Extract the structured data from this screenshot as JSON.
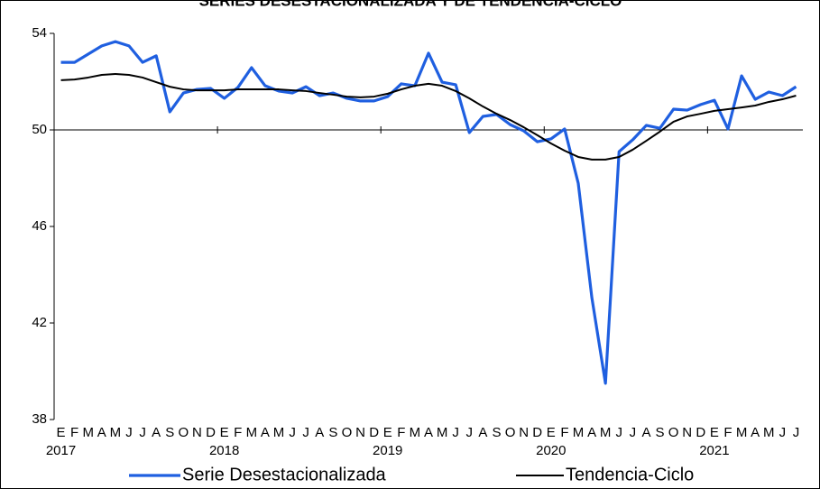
{
  "chart_data": {
    "type": "line",
    "title": "SERIES DESESTACIONALIZADA Y DE TENDENCIA-CICLO",
    "categories": [
      "E",
      "F",
      "M",
      "A",
      "M",
      "J",
      "J",
      "A",
      "S",
      "O",
      "N",
      "D",
      "E",
      "F",
      "M",
      "A",
      "M",
      "J",
      "J",
      "A",
      "S",
      "O",
      "N",
      "D",
      "E",
      "F",
      "M",
      "A",
      "M",
      "J",
      "J",
      "A",
      "S",
      "O",
      "N",
      "D",
      "E",
      "F",
      "M",
      "A",
      "M",
      "J",
      "J",
      "A",
      "S",
      "O",
      "N",
      "D",
      "E",
      "F",
      "M",
      "A",
      "M",
      "J",
      "J"
    ],
    "years": [
      "2017",
      "2018",
      "2019",
      "2020",
      "2021"
    ],
    "ylim": [
      38,
      54
    ],
    "yticks": [
      38,
      42,
      46,
      50,
      54
    ],
    "series": [
      {
        "name": "Serie Desestacionalizada",
        "color": "#1f5fe0",
        "values": [
          52.8,
          52.8,
          53.14,
          53.48,
          53.66,
          53.48,
          52.8,
          53.07,
          50.75,
          51.53,
          51.68,
          51.72,
          51.31,
          51.76,
          52.58,
          51.83,
          51.61,
          51.53,
          51.79,
          51.42,
          51.53,
          51.31,
          51.2,
          51.2,
          51.38,
          51.91,
          51.83,
          53.18,
          51.98,
          51.87,
          49.89,
          50.56,
          50.64,
          50.22,
          49.96,
          49.51,
          49.63,
          50.04,
          47.79,
          43.05,
          39.5,
          49.1,
          49.59,
          50.19,
          50.07,
          50.86,
          50.82,
          51.05,
          51.23,
          50.04,
          52.24,
          51.27,
          51.57,
          51.42,
          51.79
        ]
      },
      {
        "name": "Tendencia-Ciclo",
        "color": "#000000",
        "values": [
          52.06,
          52.09,
          52.17,
          52.28,
          52.32,
          52.28,
          52.17,
          51.98,
          51.79,
          51.68,
          51.64,
          51.64,
          51.64,
          51.68,
          51.68,
          51.68,
          51.68,
          51.64,
          51.61,
          51.53,
          51.46,
          51.38,
          51.35,
          51.38,
          51.5,
          51.68,
          51.83,
          51.91,
          51.83,
          51.61,
          51.31,
          50.97,
          50.67,
          50.41,
          50.11,
          49.78,
          49.44,
          49.14,
          48.88,
          48.77,
          48.77,
          48.88,
          49.18,
          49.55,
          49.93,
          50.34,
          50.56,
          50.67,
          50.79,
          50.86,
          50.93,
          51.01,
          51.16,
          51.27,
          51.42
        ]
      }
    ]
  }
}
